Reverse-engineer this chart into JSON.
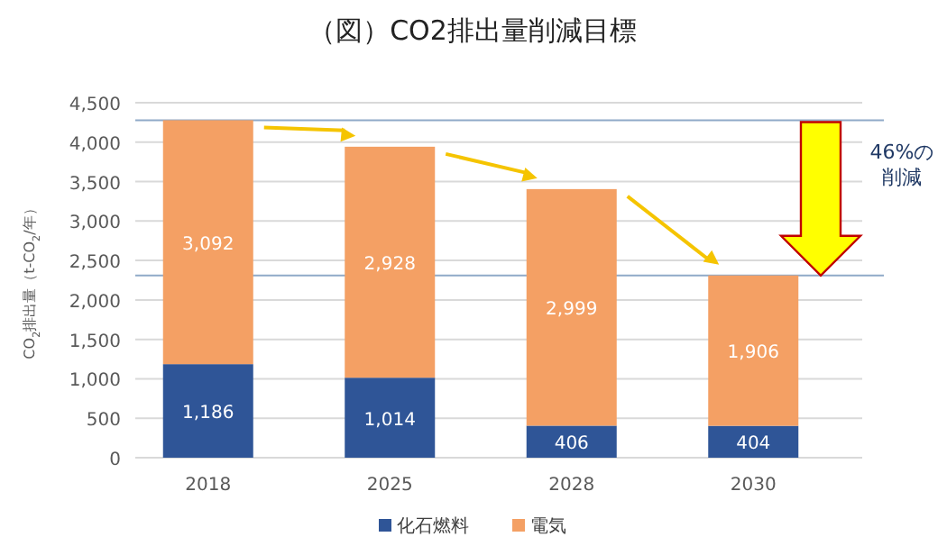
{
  "chart_data": {
    "type": "bar",
    "stacked": true,
    "title": "（図）CO2排出量削減目標",
    "ylabel": "CO$_{2}$排出量（t-CO$_{2}$/年）",
    "categories": [
      "2018",
      "2025",
      "2028",
      "2030"
    ],
    "series": [
      {
        "name": "化石燃料",
        "color": "#2f5597",
        "values": [
          1186,
          1014,
          406,
          404
        ],
        "value_labels": [
          "1,186",
          "1,014",
          "406",
          "404"
        ]
      },
      {
        "name": "電気",
        "color": "#f4a064",
        "values": [
          3092,
          2928,
          2999,
          1906
        ],
        "value_labels": [
          "3,092",
          "2,928",
          "2,999",
          "1,906"
        ]
      }
    ],
    "ylim": [
      0,
      4500
    ],
    "yticks": [
      {
        "value": 0,
        "label": "0"
      },
      {
        "value": 500,
        "label": "500"
      },
      {
        "value": 1000,
        "label": "1,000"
      },
      {
        "value": 1500,
        "label": "1,500"
      },
      {
        "value": 2000,
        "label": "2,000"
      },
      {
        "value": 2500,
        "label": "2,500"
      },
      {
        "value": 3000,
        "label": "3,000"
      },
      {
        "value": 3500,
        "label": "3,500"
      },
      {
        "value": 4000,
        "label": "4,000"
      },
      {
        "value": 4500,
        "label": "4,500"
      }
    ],
    "grid": "y",
    "legend": "bottom",
    "ref_lines": [
      {
        "axis": "y",
        "value": 4278,
        "color": "#8faac8"
      },
      {
        "axis": "y",
        "value": 2310,
        "color": "#8faac8"
      }
    ],
    "annotations": [
      "46%の削減"
    ]
  }
}
